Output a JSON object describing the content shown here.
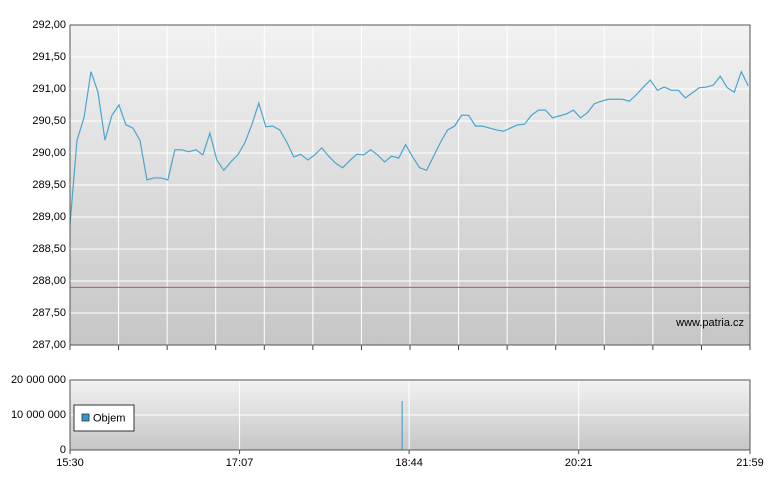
{
  "chart_data": [
    {
      "type": "line",
      "x": [
        930,
        934,
        938,
        942,
        946,
        950,
        954,
        958,
        962,
        966,
        970,
        974,
        978,
        982,
        986,
        990,
        994,
        998,
        1002,
        1006,
        1010,
        1014,
        1018,
        1022,
        1026,
        1030,
        1034,
        1038,
        1042,
        1046,
        1050,
        1054,
        1058,
        1062,
        1066,
        1070,
        1074,
        1078,
        1082,
        1086,
        1090,
        1094,
        1098,
        1102,
        1106,
        1110,
        1114,
        1118,
        1122,
        1126,
        1130,
        1134,
        1138,
        1142,
        1146,
        1150,
        1154,
        1158,
        1162,
        1166,
        1170,
        1174,
        1178,
        1182,
        1186,
        1190,
        1194,
        1198,
        1202,
        1206,
        1210,
        1214,
        1218,
        1222,
        1226,
        1230,
        1234,
        1238,
        1242,
        1246,
        1250,
        1254,
        1258,
        1262,
        1266,
        1270,
        1274,
        1278,
        1282,
        1286,
        1290,
        1294,
        1298,
        1302,
        1306,
        1310,
        1314,
        1318
      ],
      "series": [
        {
          "color": "#4aa6cc",
          "values": [
            288.88,
            290.2,
            290.55,
            291.27,
            290.95,
            290.2,
            290.59,
            290.75,
            290.44,
            290.39,
            290.2,
            289.58,
            289.61,
            289.61,
            289.58,
            290.05,
            290.05,
            290.02,
            290.05,
            289.97,
            290.31,
            289.89,
            289.73,
            289.86,
            289.97,
            290.16,
            290.44,
            290.78,
            290.41,
            290.42,
            290.36,
            290.17,
            289.94,
            289.98,
            289.89,
            289.97,
            290.08,
            289.95,
            289.84,
            289.77,
            289.88,
            289.98,
            289.97,
            290.05,
            289.97,
            289.86,
            289.95,
            289.92,
            290.13,
            289.94,
            289.77,
            289.73,
            289.95,
            290.17,
            290.36,
            290.42,
            290.59,
            290.59,
            290.42,
            290.42,
            290.39,
            290.36,
            290.34,
            290.39,
            290.44,
            290.45,
            290.59,
            290.67,
            290.67,
            290.55,
            290.58,
            290.61,
            290.67,
            290.55,
            290.63,
            290.77,
            290.81,
            290.84,
            290.84,
            290.84,
            290.81,
            290.91,
            291.03,
            291.14,
            290.98,
            291.03,
            290.98,
            290.98,
            290.86,
            290.94,
            291.02,
            291.03,
            291.06,
            291.2,
            291.02,
            290.95,
            291.27,
            291.05
          ]
        }
      ],
      "reference_line": {
        "value": 287.9,
        "color": "#d05050"
      },
      "annotation": "www.patria.cz",
      "xlim": [
        930,
        1319
      ],
      "ylim": [
        287,
        292
      ],
      "yticks": [
        {
          "value": 287,
          "label": "287,00"
        },
        {
          "value": 287.5,
          "label": "287,50"
        },
        {
          "value": 288,
          "label": "288,00"
        },
        {
          "value": 288.5,
          "label": "288,50"
        },
        {
          "value": 289,
          "label": "289,00"
        },
        {
          "value": 289.5,
          "label": "289,50"
        },
        {
          "value": 290,
          "label": "290,00"
        },
        {
          "value": 290.5,
          "label": "290,50"
        },
        {
          "value": 291,
          "label": "291,00"
        },
        {
          "value": 291.5,
          "label": "291,50"
        },
        {
          "value": 292,
          "label": "292,00"
        }
      ],
      "grid": true
    },
    {
      "type": "bar",
      "x": [
        1120
      ],
      "series": [
        {
          "name": "Objem",
          "color": "#3399cc",
          "values": [
            14000000
          ]
        }
      ],
      "xlim": [
        930,
        1319
      ],
      "xticks": [
        {
          "value": 930,
          "label": "15:30"
        },
        {
          "value": 1027,
          "label": "17:07"
        },
        {
          "value": 1124,
          "label": "18:44"
        },
        {
          "value": 1221,
          "label": "20:21"
        },
        {
          "value": 1319,
          "label": "21:59"
        }
      ],
      "ylim": [
        0,
        20000000
      ],
      "yticks": [
        {
          "value": 0,
          "label": "0"
        },
        {
          "value": 10000000,
          "label": "10 000 000"
        },
        {
          "value": 20000000,
          "label": "20 000 000"
        }
      ],
      "grid": true,
      "legend": "upper-left"
    }
  ]
}
